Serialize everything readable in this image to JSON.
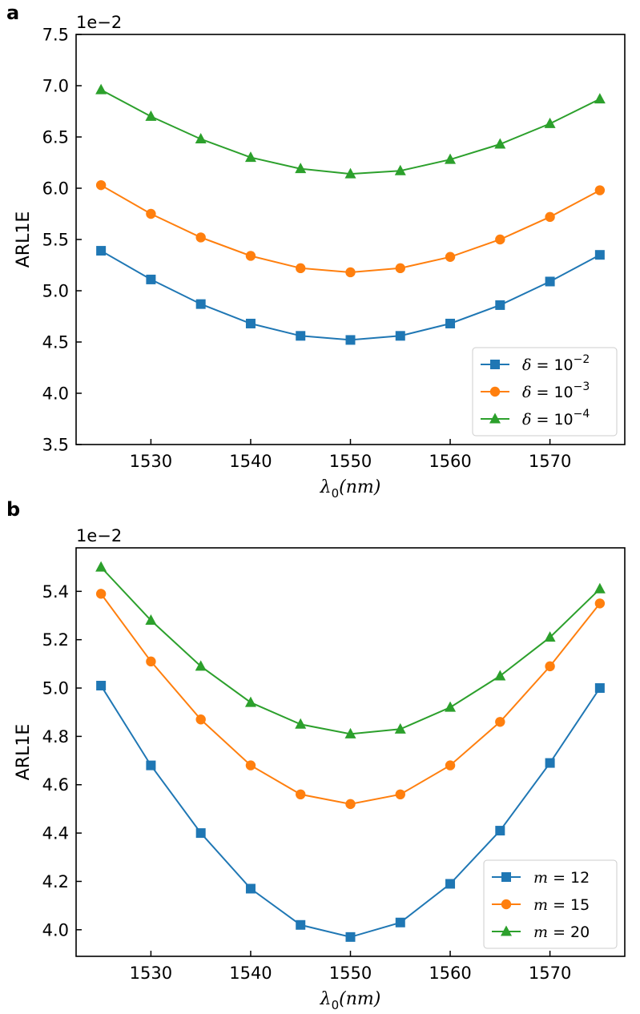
{
  "chart_data": [
    {
      "panel_label": "a",
      "type": "line",
      "scale_label": "1e−2",
      "xlabel": "λ₀(nm)",
      "xlabel_parts": {
        "symbol": "λ",
        "subscript": "0",
        "rest": "(nm)"
      },
      "ylabel": "ARL1E",
      "xlim": [
        1522.5,
        1577.5
      ],
      "ylim": [
        3.5,
        7.5
      ],
      "xticks": [
        1530,
        1540,
        1550,
        1560,
        1570
      ],
      "xtick_labels": [
        "1530",
        "1540",
        "1550",
        "1560",
        "1570"
      ],
      "yticks": [
        3.5,
        4.0,
        4.5,
        5.0,
        5.5,
        6.0,
        6.5,
        7.0,
        7.5
      ],
      "ytick_labels": [
        "3.5",
        "4.0",
        "4.5",
        "5.0",
        "5.5",
        "6.0",
        "6.5",
        "7.0",
        "7.5"
      ],
      "x": [
        1525,
        1530,
        1535,
        1540,
        1545,
        1550,
        1555,
        1560,
        1565,
        1570,
        1575
      ],
      "series": [
        {
          "name": "δ = 10⁻²",
          "legend": {
            "var": "δ",
            "base": "10",
            "exp": "−2"
          },
          "color": "#1f77b4",
          "marker": "square",
          "values": [
            5.39,
            5.11,
            4.87,
            4.68,
            4.56,
            4.52,
            4.56,
            4.68,
            4.86,
            5.09,
            5.35
          ]
        },
        {
          "name": "δ = 10⁻³",
          "legend": {
            "var": "δ",
            "base": "10",
            "exp": "−3"
          },
          "color": "#ff7f0e",
          "marker": "circle",
          "values": [
            6.03,
            5.75,
            5.52,
            5.34,
            5.22,
            5.18,
            5.22,
            5.33,
            5.5,
            5.72,
            5.98
          ]
        },
        {
          "name": "δ = 10⁻⁴",
          "legend": {
            "var": "δ",
            "base": "10",
            "exp": "−4"
          },
          "color": "#2ca02c",
          "marker": "triangle",
          "values": [
            6.96,
            6.7,
            6.48,
            6.3,
            6.19,
            6.14,
            6.17,
            6.28,
            6.43,
            6.63,
            6.87
          ]
        }
      ],
      "legend_position": "lower right",
      "grid": false
    },
    {
      "panel_label": "b",
      "type": "line",
      "scale_label": "1e−2",
      "xlabel": "λ₀(nm)",
      "xlabel_parts": {
        "symbol": "λ",
        "subscript": "0",
        "rest": "(nm)"
      },
      "ylabel": "ARL1E",
      "xlim": [
        1522.5,
        1577.5
      ],
      "ylim": [
        3.89,
        5.58
      ],
      "xticks": [
        1530,
        1540,
        1550,
        1560,
        1570
      ],
      "xtick_labels": [
        "1530",
        "1540",
        "1550",
        "1560",
        "1570"
      ],
      "yticks": [
        4.0,
        4.2,
        4.4,
        4.6,
        4.8,
        5.0,
        5.2,
        5.4
      ],
      "ytick_labels": [
        "4.0",
        "4.2",
        "4.4",
        "4.6",
        "4.8",
        "5.0",
        "5.2",
        "5.4"
      ],
      "x": [
        1525,
        1530,
        1535,
        1540,
        1545,
        1550,
        1555,
        1560,
        1565,
        1570,
        1575
      ],
      "series": [
        {
          "name": "m = 12",
          "legend": {
            "var": "m",
            "base": "12",
            "exp": ""
          },
          "color": "#1f77b4",
          "marker": "square",
          "values": [
            5.01,
            4.68,
            4.4,
            4.17,
            4.02,
            3.97,
            4.03,
            4.19,
            4.41,
            4.69,
            5.0
          ]
        },
        {
          "name": "m = 15",
          "legend": {
            "var": "m",
            "base": "15",
            "exp": ""
          },
          "color": "#ff7f0e",
          "marker": "circle",
          "values": [
            5.39,
            5.11,
            4.87,
            4.68,
            4.56,
            4.52,
            4.56,
            4.68,
            4.86,
            5.09,
            5.35
          ]
        },
        {
          "name": "m = 20",
          "legend": {
            "var": "m",
            "base": "20",
            "exp": ""
          },
          "color": "#2ca02c",
          "marker": "triangle",
          "values": [
            5.5,
            5.28,
            5.09,
            4.94,
            4.85,
            4.81,
            4.83,
            4.92,
            5.05,
            5.21,
            5.41
          ]
        }
      ],
      "legend_position": "lower right",
      "grid": false
    }
  ]
}
